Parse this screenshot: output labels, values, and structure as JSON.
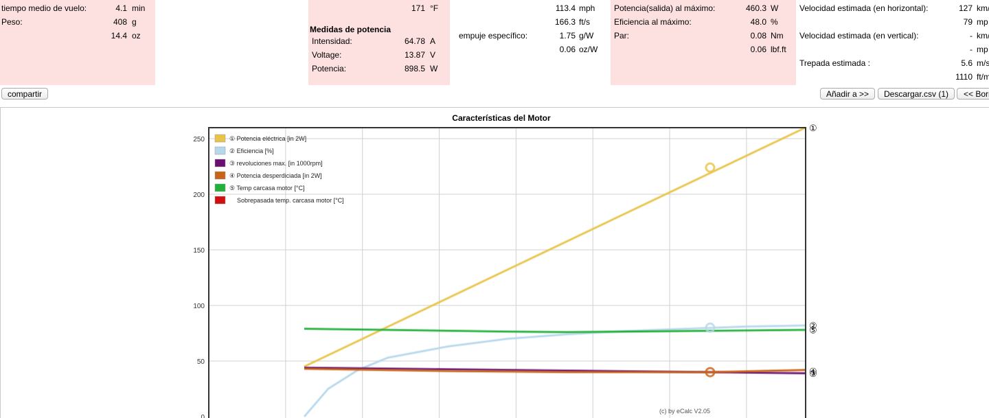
{
  "flight": {
    "time_label": "tiempo medio de vuelo:",
    "time_value": "4.1",
    "time_unit": "min",
    "weight_label": "Peso:",
    "weight_g": "408",
    "weight_g_unit": "g",
    "weight_oz": "14.4",
    "weight_oz_unit": "oz"
  },
  "power_measures": {
    "temp_value": "171",
    "temp_unit": "°F",
    "title": "Medidas de potencia",
    "current_label": "Intensidad:",
    "current_value": "64.78",
    "current_unit": "A",
    "voltage_label": "Voltage:",
    "voltage_value": "13.87",
    "voltage_unit": "V",
    "power_label": "Potencia:",
    "power_value": "898.5",
    "power_unit": "W"
  },
  "speed": {
    "mph": "113.4",
    "mph_unit": "mph",
    "fts": "166.3",
    "fts_unit": "ft/s",
    "thrust_label": "empuje específico:",
    "gw": "1.75",
    "gw_unit": "g/W",
    "ozw": "0.06",
    "ozw_unit": "oz/W"
  },
  "max_output": {
    "power_label": "Potencia(salida) al máximo:",
    "power_value": "460.3",
    "power_unit": "W",
    "eff_label": "Eficiencia al máximo:",
    "eff_value": "48.0",
    "eff_unit": "%",
    "torque_label": "Par:",
    "torque_nm": "0.08",
    "torque_nm_unit": "Nm",
    "torque_lbf": "0.06",
    "torque_lbf_unit": "lbf.ft"
  },
  "estimates": {
    "h_label": "Velocidad estimada (en horizontal):",
    "h_kmh": "127",
    "h_kmh_unit": "km/",
    "h_mph": "79",
    "h_mph_unit": "mp",
    "v_label": "Velocidad estimada (en vertical):",
    "v_kmh": "-",
    "v_kmh_unit": "km/",
    "v_mph": "-",
    "v_mph_unit": "mp",
    "climb_label": "Trepada estimada :",
    "climb_ms": "5.6",
    "climb_ms_unit": "m/s",
    "climb_ftm": "1110",
    "climb_ftm_unit": "ft/m"
  },
  "toolbar": {
    "share_label": "compartir",
    "add_label": "Añadir a >>",
    "download_label": "Descargar.csv (1)",
    "delete_label": "<< Borr"
  },
  "chart_data": {
    "type": "line",
    "title": "Características del Motor",
    "xlabel": "",
    "ylabel": "",
    "ylim": [
      0,
      260
    ],
    "yticks": [
      0,
      50,
      100,
      150,
      200,
      250
    ],
    "grid": true,
    "legend_placement": "top-left",
    "watermark": "(c) by eCalc  V2.05",
    "series": [
      {
        "marker": "①",
        "name": "Potencia eléctrica [in 2W]",
        "color": "#e8c44a",
        "x": [
          0.16,
          1.0
        ],
        "values": [
          45,
          260
        ],
        "highlight": {
          "x": 0.84,
          "y": 224
        }
      },
      {
        "marker": "②",
        "name": "Eficiencia [%]",
        "color": "#b6d8ec",
        "x": [
          0.16,
          0.2,
          0.25,
          0.3,
          0.4,
          0.5,
          0.6,
          0.7,
          0.8,
          0.9,
          1.0
        ],
        "values": [
          0,
          25,
          42,
          53,
          63,
          70,
          74,
          77,
          79,
          81,
          82
        ],
        "highlight": {
          "x": 0.84,
          "y": 80
        }
      },
      {
        "marker": "③",
        "name": "revoluciones max. [in 1000rpm]",
        "color": "#6a1070",
        "x": [
          0.16,
          1.0
        ],
        "values": [
          44,
          39
        ]
      },
      {
        "marker": "④",
        "name": "Potencia desperdiciada [in 2W]",
        "color": "#c8641a",
        "x": [
          0.16,
          0.4,
          0.6,
          0.84,
          1.0
        ],
        "values": [
          43,
          41,
          40,
          40,
          42
        ],
        "highlight": {
          "x": 0.84,
          "y": 40
        }
      },
      {
        "marker": "⑤",
        "name": "Temp carcasa motor [°C]",
        "color": "#22b03a",
        "x": [
          0.16,
          0.3,
          0.5,
          0.6,
          0.8,
          1.0
        ],
        "values": [
          79,
          78,
          76.5,
          76,
          77,
          78
        ]
      },
      {
        "marker": "",
        "name": "Sobrepasada temp. carcasa motor [°C]",
        "color": "#d01010",
        "x": [],
        "values": []
      }
    ],
    "end_labels": [
      {
        "text": "①",
        "y": 260
      },
      {
        "text": "②",
        "y": 82
      },
      {
        "text": "⑤",
        "y": 78
      },
      {
        "text": "③",
        "y": 39
      },
      {
        "text": "④",
        "y": 41
      }
    ]
  }
}
